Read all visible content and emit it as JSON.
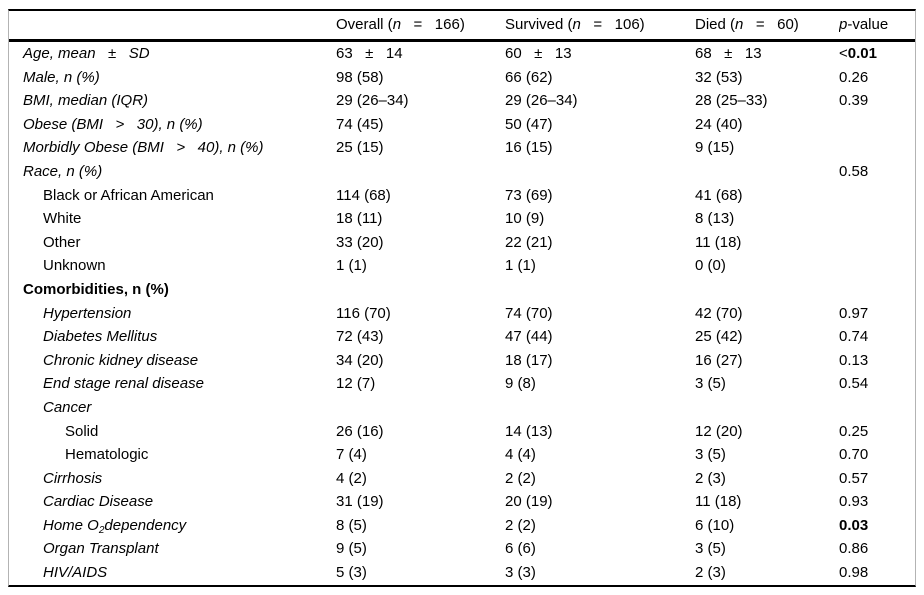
{
  "colors": {
    "text": "#000000",
    "border_heavy": "#000000",
    "border_light": "#b3b3b3",
    "background": "#ffffff"
  },
  "table": {
    "header": {
      "columns": [
        {
          "key": "overall",
          "segments": [
            {
              "t": "Overall ("
            },
            {
              "t": "n",
              "i": true
            },
            {
              "t": "   =   166)"
            }
          ]
        },
        {
          "key": "survived",
          "segments": [
            {
              "t": "Survived ("
            },
            {
              "t": "n",
              "i": true
            },
            {
              "t": "   =   106)"
            }
          ]
        },
        {
          "key": "died",
          "segments": [
            {
              "t": "Died ("
            },
            {
              "t": "n",
              "i": true
            },
            {
              "t": "   =   60)"
            }
          ]
        },
        {
          "key": "pvalue",
          "segments": [
            {
              "t": "p",
              "i": true
            },
            {
              "t": "-value"
            }
          ]
        }
      ]
    },
    "rows": [
      {
        "indent": 0,
        "label": [
          {
            "t": "Age, mean   ±   SD",
            "i": true
          }
        ],
        "cells": [
          "63   ±   14",
          "60   ±   13",
          "68   ±   13"
        ],
        "p": [
          {
            "t": "<"
          },
          {
            "t": "0.01",
            "b": true
          }
        ]
      },
      {
        "indent": 0,
        "label": [
          {
            "t": "Male, n (%)",
            "i": true
          }
        ],
        "cells": [
          "98 (58)",
          "66 (62)",
          "32 (53)"
        ],
        "p": [
          {
            "t": "0.26"
          }
        ]
      },
      {
        "indent": 0,
        "label": [
          {
            "t": "BMI, median (IQR)",
            "i": true
          }
        ],
        "cells": [
          "29 (26–34)",
          "29 (26–34)",
          "28 (25–33)"
        ],
        "p": [
          {
            "t": "0.39"
          }
        ]
      },
      {
        "indent": 0,
        "label": [
          {
            "t": "Obese (BMI   >   30), n (%)",
            "i": true
          }
        ],
        "cells": [
          "74 (45)",
          "50 (47)",
          "24 (40)"
        ],
        "p": []
      },
      {
        "indent": 0,
        "label": [
          {
            "t": "Morbidly Obese (BMI   >   40), n (%)",
            "i": true
          }
        ],
        "cells": [
          "25 (15)",
          "16 (15)",
          "9 (15)"
        ],
        "p": []
      },
      {
        "indent": 0,
        "label": [
          {
            "t": "Race, n (%)",
            "i": true
          }
        ],
        "cells": [
          "",
          "",
          ""
        ],
        "p": [
          {
            "t": "0.58"
          }
        ]
      },
      {
        "indent": 1,
        "label": [
          {
            "t": "Black or African American"
          }
        ],
        "cells": [
          "114 (68)",
          "73 (69)",
          "41 (68)"
        ],
        "p": []
      },
      {
        "indent": 1,
        "label": [
          {
            "t": "White"
          }
        ],
        "cells": [
          "18 (11)",
          "10 (9)",
          "8 (13)"
        ],
        "p": []
      },
      {
        "indent": 1,
        "label": [
          {
            "t": "Other"
          }
        ],
        "cells": [
          "33 (20)",
          "22 (21)",
          "11 (18)"
        ],
        "p": []
      },
      {
        "indent": 1,
        "label": [
          {
            "t": "Unknown"
          }
        ],
        "cells": [
          "1 (1)",
          "1 (1)",
          "0 (0)"
        ],
        "p": []
      },
      {
        "indent": 0,
        "label": [
          {
            "t": "Comorbidities, n (%)",
            "b": true
          }
        ],
        "cells": [
          "",
          "",
          ""
        ],
        "p": []
      },
      {
        "indent": 1,
        "label": [
          {
            "t": "Hypertension",
            "i": true
          }
        ],
        "cells": [
          "116 (70)",
          "74 (70)",
          "42 (70)"
        ],
        "p": [
          {
            "t": "0.97"
          }
        ]
      },
      {
        "indent": 1,
        "label": [
          {
            "t": "Diabetes Mellitus",
            "i": true
          }
        ],
        "cells": [
          "72 (43)",
          "47 (44)",
          "25 (42)"
        ],
        "p": [
          {
            "t": "0.74"
          }
        ]
      },
      {
        "indent": 1,
        "label": [
          {
            "t": "Chronic kidney disease",
            "i": true
          }
        ],
        "cells": [
          "34 (20)",
          "18 (17)",
          "16 (27)"
        ],
        "p": [
          {
            "t": "0.13"
          }
        ]
      },
      {
        "indent": 1,
        "label": [
          {
            "t": "End stage renal disease",
            "i": true
          }
        ],
        "cells": [
          "12 (7)",
          "9 (8)",
          "3 (5)"
        ],
        "p": [
          {
            "t": "0.54"
          }
        ]
      },
      {
        "indent": 1,
        "label": [
          {
            "t": "Cancer",
            "i": true
          }
        ],
        "cells": [
          "",
          "",
          ""
        ],
        "p": []
      },
      {
        "indent": 2,
        "label": [
          {
            "t": "Solid"
          }
        ],
        "cells": [
          "26 (16)",
          "14 (13)",
          "12 (20)"
        ],
        "p": [
          {
            "t": "0.25"
          }
        ]
      },
      {
        "indent": 2,
        "label": [
          {
            "t": "Hematologic"
          }
        ],
        "cells": [
          "7 (4)",
          "4 (4)",
          "3 (5)"
        ],
        "p": [
          {
            "t": "0.70"
          }
        ]
      },
      {
        "indent": 1,
        "label": [
          {
            "t": "Cirrhosis",
            "i": true
          }
        ],
        "cells": [
          "4 (2)",
          "2 (2)",
          "2 (3)"
        ],
        "p": [
          {
            "t": "0.57"
          }
        ]
      },
      {
        "indent": 1,
        "label": [
          {
            "t": "Cardiac Disease",
            "i": true
          }
        ],
        "cells": [
          "31 (19)",
          "20 (19)",
          "11 (18)"
        ],
        "p": [
          {
            "t": "0.93"
          }
        ]
      },
      {
        "indent": 1,
        "label": [
          {
            "t": "Home O",
            "i": true
          },
          {
            "t": "2",
            "i": true,
            "sub": true
          },
          {
            "t": "dependency",
            "i": true
          }
        ],
        "cells": [
          "8 (5)",
          "2 (2)",
          "6 (10)"
        ],
        "p": [
          {
            "t": "0.03",
            "b": true
          }
        ]
      },
      {
        "indent": 1,
        "label": [
          {
            "t": "Organ Transplant",
            "i": true
          }
        ],
        "cells": [
          "9 (5)",
          "6 (6)",
          "3 (5)"
        ],
        "p": [
          {
            "t": "0.86"
          }
        ]
      },
      {
        "indent": 1,
        "label": [
          {
            "t": "HIV/AIDS",
            "i": true
          }
        ],
        "cells": [
          "5 (3)",
          "3 (3)",
          "2 (3)"
        ],
        "p": [
          {
            "t": "0.98"
          }
        ]
      }
    ]
  }
}
